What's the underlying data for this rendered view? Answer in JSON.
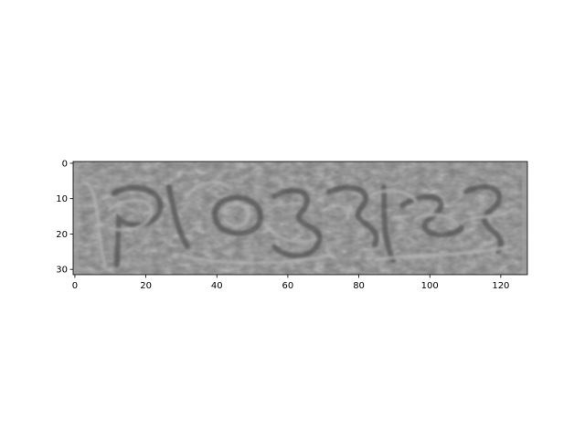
{
  "chart_data": {
    "type": "heatmap",
    "title": "",
    "xlabel": "",
    "ylabel": "",
    "xlim": [
      -0.5,
      127.5
    ],
    "ylim": [
      31.5,
      -0.5
    ],
    "x_ticks": [
      0,
      20,
      40,
      60,
      80,
      100,
      120
    ],
    "y_ticks": [
      0,
      10,
      20,
      30
    ],
    "grid": false,
    "colormap": "gray",
    "image_size": [
      128,
      32
    ],
    "image_content": "grayscale captcha-like noisy image with swirling distorted glyphs"
  },
  "colors": {
    "background": "#ffffff",
    "axis": "#000000",
    "image_mid": "#7b7b7b",
    "image_dark": "#4f4f4f",
    "image_light": "#b4b4b4"
  }
}
